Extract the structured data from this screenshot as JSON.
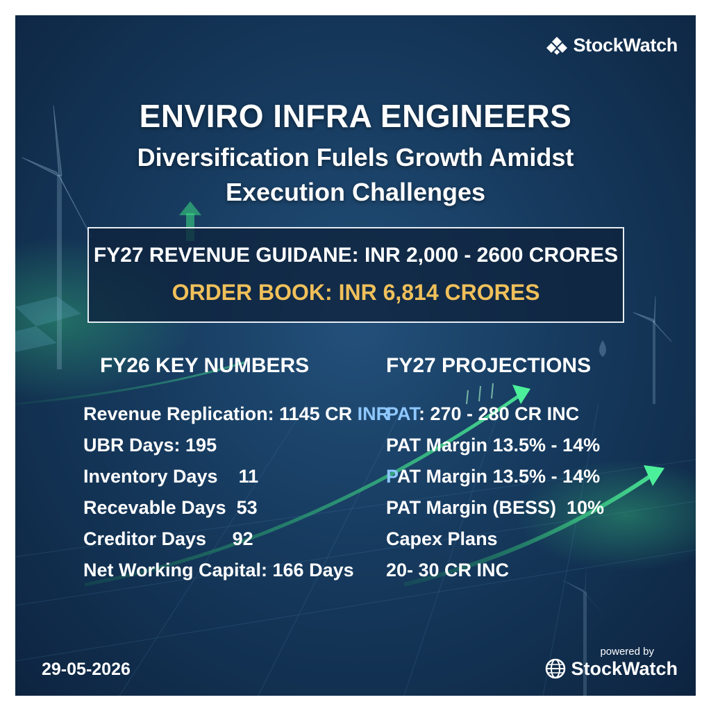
{
  "brand": {
    "name": "StockWatch",
    "logo_icon": "diamond-logo-icon",
    "powered_by_label": "powered by",
    "powered_icon": "globe-icon"
  },
  "headline": {
    "title": "ENVIRO INFRA ENGINEERS",
    "subtitle_line1": "Diversification Fulels Growth Amidst",
    "subtitle_line2": "Execution Challenges"
  },
  "guidance": {
    "revenue": "FY27 REVENUE GUIDANE: INR 2,000 - 2600 CRORES",
    "order_book": "ORDER BOOK: INR 6,814 CRORES"
  },
  "fy26": {
    "heading": "FY26 KEY NUMBERS",
    "items": [
      {
        "label": "Revenue Replication: 1145 CR ",
        "accent": "INR"
      },
      {
        "label": "UBR Days: 195",
        "accent": ""
      },
      {
        "label": "Inventory Days    11",
        "accent": ""
      },
      {
        "label": "Recevable Days  53",
        "accent": ""
      },
      {
        "label": "Creditor Days     92",
        "accent": ""
      },
      {
        "label": "Net Working Capital: 166 Days",
        "accent": ""
      }
    ]
  },
  "fy27": {
    "heading": "FY27 PROJECTIONS",
    "items": [
      {
        "accent": "PAT",
        "label": ": 270 - 280 CR INC"
      },
      {
        "accent": "",
        "label": "PAT Margin 13.5% - 14%"
      },
      {
        "accent": "P",
        "label": "AT Margin 13.5% - 14%"
      },
      {
        "accent": "",
        "label": "PAT Margin (BESS)  10%"
      },
      {
        "accent": "",
        "label": "Capex Plans"
      },
      {
        "accent": "",
        "label": "20- 30 CR INC"
      }
    ]
  },
  "date": "29-05-2026",
  "colors": {
    "background": "#163a5e",
    "order_book": "#f0c05a",
    "accent_text": "#8fc8ff",
    "glow_green": "#3ddc84"
  }
}
